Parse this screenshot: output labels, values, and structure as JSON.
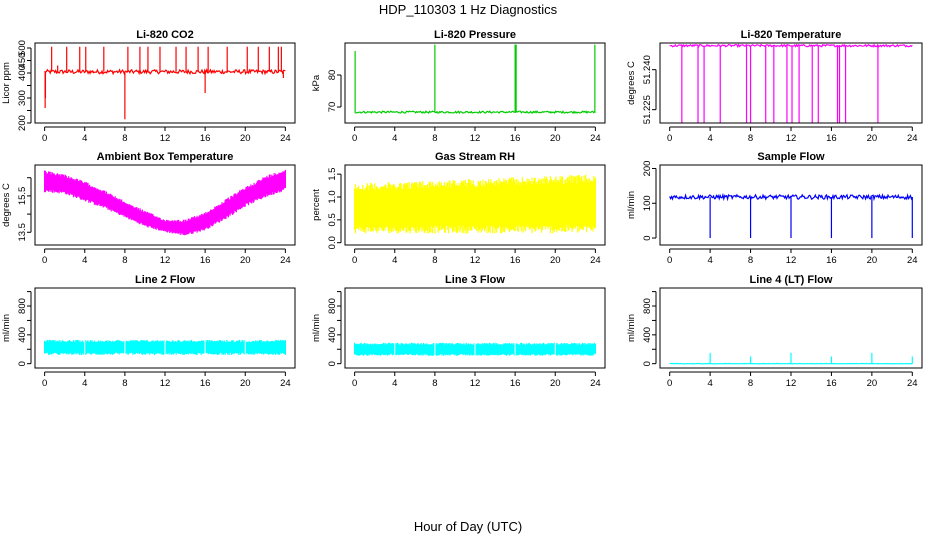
{
  "main_title": "HDP_110303  1 Hz Diagnostics",
  "xlabel": "Hour of Day (UTC)",
  "colors": {
    "red": "#ff0000",
    "green": "#00cc00",
    "magenta": "#ff00ff",
    "yellow": "#ffff00",
    "blue": "#0000ff",
    "cyan": "#00ffff"
  },
  "chart_data": [
    {
      "type": "line",
      "title": "Li-820 CO2",
      "ylabel": "Licor ppm",
      "xlim": [
        0,
        24
      ],
      "xticks": [
        0,
        4,
        8,
        12,
        16,
        20,
        24
      ],
      "ylim": [
        200,
        520
      ],
      "yticks": [
        200,
        250,
        300,
        350,
        400,
        450,
        500
      ],
      "ytick_labels": [
        "200",
        "",
        "300",
        "",
        "400",
        "450",
        "500"
      ],
      "color": "#ff0000",
      "series": [
        {
          "pattern": "baseline",
          "baseline": 405,
          "noise": 8
        },
        {
          "pattern": "spikes",
          "x": [
            0.7,
            1.3,
            2.2,
            3.5,
            4.1,
            5.9,
            8.3,
            9.5,
            10.3,
            11.5,
            13.1,
            14.1,
            15.3,
            16.3,
            18.2,
            20.2,
            21.3,
            22.4,
            23.3,
            23.6
          ],
          "y": [
            505,
            430,
            505,
            505,
            505,
            505,
            505,
            505,
            505,
            505,
            505,
            505,
            505,
            505,
            505,
            505,
            505,
            505,
            505,
            505
          ]
        },
        {
          "pattern": "dips",
          "x": [
            0.05,
            0.08,
            8.0,
            16.0,
            23.8
          ],
          "y": [
            260,
            300,
            215,
            320,
            380
          ]
        }
      ]
    },
    {
      "type": "line",
      "title": "Li-820 Pressure",
      "ylabel": "kPa",
      "xlim": [
        0,
        24
      ],
      "xticks": [
        0,
        4,
        8,
        12,
        16,
        20,
        24
      ],
      "ylim": [
        65,
        90
      ],
      "yticks": [
        70,
        80
      ],
      "ytick_labels": [
        "70",
        "80"
      ],
      "color": "#00cc00",
      "series": [
        {
          "pattern": "baseline",
          "baseline": 68.4,
          "noise": 0.3
        },
        {
          "pattern": "spikes",
          "x": [
            0.05,
            8.0,
            16.0,
            16.1,
            23.95
          ],
          "y": [
            87.5,
            89.5,
            89.5,
            89.5,
            89.5
          ]
        }
      ]
    },
    {
      "type": "line",
      "title": "Li-820 Temperature",
      "ylabel": "degrees C",
      "xlim": [
        0,
        24
      ],
      "xticks": [
        0,
        4,
        8,
        12,
        16,
        20,
        24
      ],
      "ylim": [
        51.22,
        51.25
      ],
      "yticks": [
        51.225,
        51.24
      ],
      "ytick_labels": [
        "51.225",
        "51.240"
      ],
      "color": "#ff00ff",
      "series": [
        {
          "pattern": "baseline",
          "baseline": 51.249,
          "noise": 0.0004
        },
        {
          "pattern": "dips",
          "x": [
            1.2,
            2.8,
            3.4,
            5.0,
            7.6,
            8.0,
            9.5,
            10.3,
            11.6,
            12.1,
            12.8,
            14.1,
            14.7,
            16.6,
            16.8,
            17.4,
            20.6
          ],
          "y": [
            51.22,
            51.22,
            51.22,
            51.22,
            51.22,
            51.22,
            51.22,
            51.22,
            51.22,
            51.22,
            51.22,
            51.22,
            51.22,
            51.22,
            51.22,
            51.22,
            51.22
          ]
        }
      ]
    },
    {
      "type": "line",
      "title": "Ambient Box Temperature",
      "ylabel": "degrees C",
      "xlim": [
        0,
        24
      ],
      "xticks": [
        0,
        4,
        8,
        12,
        16,
        20,
        24
      ],
      "ylim": [
        12.8,
        17.2
      ],
      "yticks": [
        13.5,
        14.5,
        15.5,
        16.5
      ],
      "ytick_labels": [
        "13.5",
        "",
        "15.5",
        ""
      ],
      "color": "#ff00ff",
      "series": [
        {
          "pattern": "band",
          "x": [
            0,
            2,
            4,
            6,
            8,
            10,
            12,
            14,
            16,
            18,
            20,
            22,
            24
          ],
          "low": [
            15.7,
            15.6,
            15.2,
            14.8,
            14.3,
            13.8,
            13.5,
            13.3,
            13.6,
            14.2,
            14.9,
            15.4,
            15.8
          ],
          "high": [
            16.9,
            16.7,
            16.3,
            15.8,
            15.2,
            14.7,
            14.2,
            14.2,
            14.6,
            15.3,
            16.0,
            16.6,
            17.0
          ]
        }
      ]
    },
    {
      "type": "line",
      "title": "Gas Stream RH",
      "ylabel": "percent",
      "xlim": [
        0,
        24
      ],
      "xticks": [
        0,
        4,
        8,
        12,
        16,
        20,
        24
      ],
      "ylim": [
        -0.05,
        1.7
      ],
      "yticks": [
        0.0,
        0.5,
        1.0,
        1.5
      ],
      "ytick_labels": [
        "0.0",
        "0.5",
        "1.0",
        "1.5"
      ],
      "color": "#ffff00",
      "series": [
        {
          "pattern": "band",
          "x": [
            0,
            6,
            12,
            18,
            24
          ],
          "low": [
            0.2,
            0.2,
            0.2,
            0.2,
            0.2
          ],
          "high": [
            1.3,
            1.35,
            1.4,
            1.45,
            1.5
          ]
        }
      ]
    },
    {
      "type": "line",
      "title": "Sample Flow",
      "ylabel": "ml/min",
      "xlim": [
        0,
        24
      ],
      "xticks": [
        0,
        4,
        8,
        12,
        16,
        20,
        24
      ],
      "ylim": [
        -20,
        210
      ],
      "yticks": [
        0,
        100,
        200
      ],
      "ytick_labels": [
        "0",
        "100",
        "200"
      ],
      "color": "#0000ff",
      "series": [
        {
          "pattern": "baseline",
          "baseline": 118,
          "noise": 6
        },
        {
          "pattern": "dips",
          "x": [
            4.0,
            8.0,
            12.0,
            16.0,
            20.0,
            24.0
          ],
          "y": [
            0,
            0,
            0,
            0,
            0,
            0
          ]
        }
      ]
    },
    {
      "type": "line",
      "title": "Line 2 Flow",
      "ylabel": "ml/min",
      "xlim": [
        0,
        24
      ],
      "xticks": [
        0,
        4,
        8,
        12,
        16,
        20,
        24
      ],
      "ylim": [
        -60,
        1050
      ],
      "yticks": [
        0,
        200,
        400,
        600,
        800,
        1000
      ],
      "ytick_labels": [
        "0",
        "",
        "400",
        "",
        "800",
        ""
      ],
      "color": "#00ffff",
      "series": [
        {
          "pattern": "band",
          "x": [
            0,
            24
          ],
          "low": [
            120,
            120
          ],
          "high": [
            330,
            330
          ]
        }
      ]
    },
    {
      "type": "line",
      "title": "Line 3 Flow",
      "ylabel": "ml/min",
      "xlim": [
        0,
        24
      ],
      "xticks": [
        0,
        4,
        8,
        12,
        16,
        20,
        24
      ],
      "ylim": [
        -60,
        1050
      ],
      "yticks": [
        0,
        200,
        400,
        600,
        800,
        1000
      ],
      "ytick_labels": [
        "0",
        "",
        "400",
        "",
        "800",
        ""
      ],
      "color": "#00ffff",
      "series": [
        {
          "pattern": "band",
          "x": [
            0,
            24
          ],
          "low": [
            110,
            110
          ],
          "high": [
            290,
            290
          ]
        }
      ]
    },
    {
      "type": "line",
      "title": "Line 4 (LT) Flow",
      "ylabel": "ml/min",
      "xlim": [
        0,
        24
      ],
      "xticks": [
        0,
        4,
        8,
        12,
        16,
        20,
        24
      ],
      "ylim": [
        -60,
        1050
      ],
      "yticks": [
        0,
        200,
        400,
        600,
        800,
        1000
      ],
      "ytick_labels": [
        "0",
        "",
        "400",
        "",
        "800",
        ""
      ],
      "color": "#00ffff",
      "series": [
        {
          "pattern": "baseline",
          "baseline": 0,
          "noise": 3
        },
        {
          "pattern": "spikes",
          "x": [
            4.0,
            8.0,
            12.0,
            16.0,
            20.0,
            24.0
          ],
          "y": [
            150,
            100,
            150,
            100,
            150,
            100
          ]
        }
      ]
    }
  ]
}
